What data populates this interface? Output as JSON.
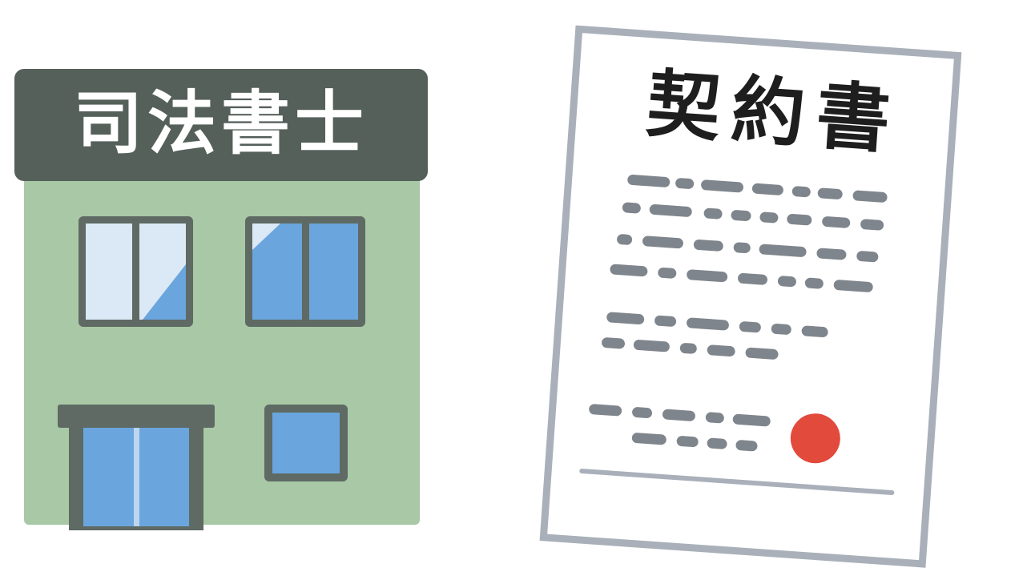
{
  "building": {
    "sign_text": "司法書士",
    "colors": {
      "sign_bg": "#55605a",
      "wall": "#a8c8a6",
      "frame": "#5e6a63",
      "glass_light": "#dbe9f6",
      "glass_blue": "#6aa6dd"
    },
    "icons": [
      "building-icon",
      "window-icon",
      "door-icon"
    ]
  },
  "document": {
    "title": "契約書",
    "colors": {
      "paper": "#ffffff",
      "border": "#a9b0ba",
      "text_dash": "#7f858c",
      "seal": "#e24a3c"
    },
    "icons": [
      "contract-icon",
      "seal-icon"
    ]
  }
}
